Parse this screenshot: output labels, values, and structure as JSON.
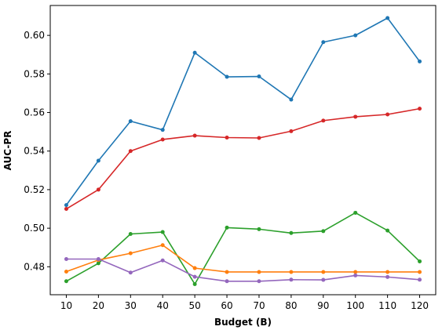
{
  "chart_data": {
    "type": "line",
    "title": "",
    "xlabel": "Budget (B)",
    "ylabel": "AUC-PR",
    "x": [
      10,
      20,
      30,
      40,
      50,
      60,
      70,
      80,
      90,
      100,
      110,
      120
    ],
    "xlim": [
      5,
      125
    ],
    "ylim": [
      0.4655,
      0.6155
    ],
    "xticks": [
      10,
      20,
      30,
      40,
      50,
      60,
      70,
      80,
      90,
      100,
      110,
      120
    ],
    "yticks": [
      0.48,
      0.5,
      0.52,
      0.54,
      0.56,
      0.58,
      0.6
    ],
    "grid": false,
    "legend": "none",
    "series": [
      {
        "color": "#1f77b4",
        "values": [
          0.512,
          0.535,
          0.5555,
          0.551,
          0.591,
          0.5785,
          0.5787,
          0.5667,
          0.5965,
          0.6,
          0.609,
          0.5865
        ]
      },
      {
        "color": "#d62728",
        "values": [
          0.51,
          0.52,
          0.54,
          0.546,
          0.548,
          0.547,
          0.5468,
          0.5503,
          0.5558,
          0.5578,
          0.559,
          0.562
        ]
      },
      {
        "color": "#2ca02c",
        "values": [
          0.4725,
          0.4818,
          0.497,
          0.498,
          0.471,
          0.5003,
          0.4995,
          0.4975,
          0.4985,
          0.508,
          0.4988,
          0.4828
        ]
      },
      {
        "color": "#ff7f0e",
        "values": [
          0.4775,
          0.4835,
          0.487,
          0.4912,
          0.4793,
          0.4773,
          0.4773,
          0.4773,
          0.4773,
          0.4773,
          0.4773,
          0.4773
        ]
      },
      {
        "color": "#9467bd",
        "values": [
          0.484,
          0.484,
          0.477,
          0.4833,
          0.4748,
          0.4725,
          0.4725,
          0.4733,
          0.4732,
          0.4755,
          0.4747,
          0.4733
        ]
      }
    ]
  }
}
